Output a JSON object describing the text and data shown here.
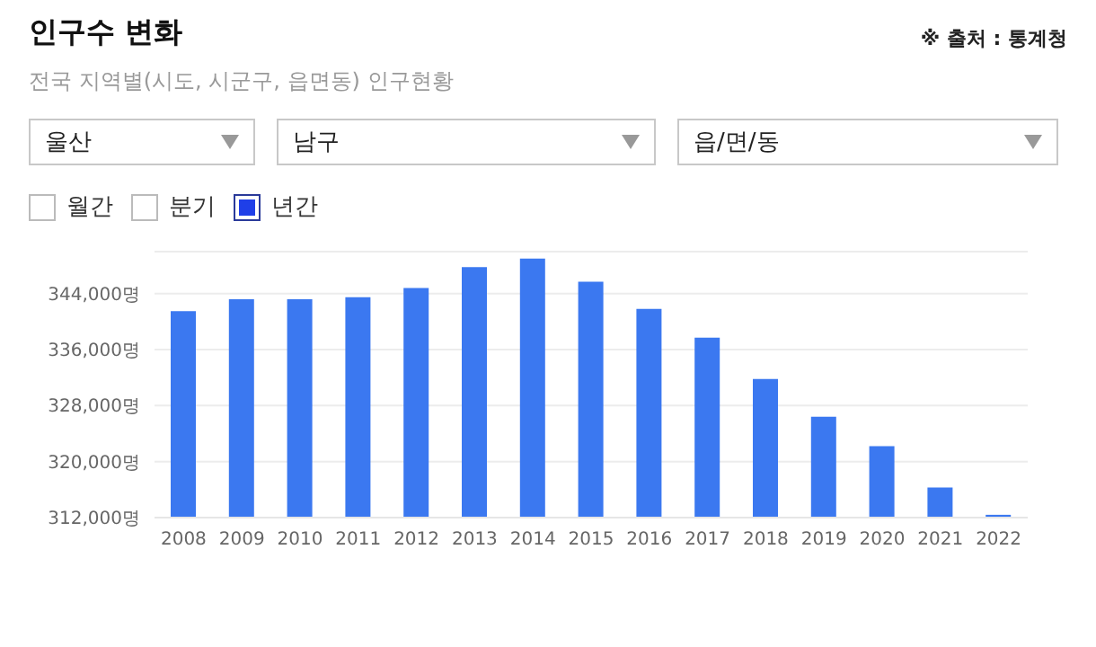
{
  "chart_data": {
    "type": "bar",
    "title": "인구수 변화",
    "subtitle": "전국 지역별(시도, 시군구, 읍면동) 인구현황",
    "annotations": [
      "※ 출처 : 통계청",
      "울산",
      "남구",
      "읍/면/동",
      "월간",
      "분기",
      "년간"
    ],
    "categories": [
      "2008",
      "2009",
      "2010",
      "2011",
      "2012",
      "2013",
      "2014",
      "2015",
      "2016",
      "2017",
      "2018",
      "2019",
      "2020",
      "2021",
      "2022"
    ],
    "values": [
      341500,
      343200,
      343200,
      343500,
      344800,
      347800,
      349000,
      345700,
      341800,
      337700,
      331800,
      326400,
      322200,
      316300,
      312400
    ],
    "color": "#3b78f0",
    "ylim": [
      312000,
      350000
    ],
    "yticks": [
      {
        "value": 312000,
        "label": "312,000명"
      },
      {
        "value": 320000,
        "label": "320,000명"
      },
      {
        "value": 328000,
        "label": "328,000명"
      },
      {
        "value": 336000,
        "label": "336,000명"
      },
      {
        "value": 344000,
        "label": "344,000명"
      }
    ],
    "grid": "y"
  }
}
